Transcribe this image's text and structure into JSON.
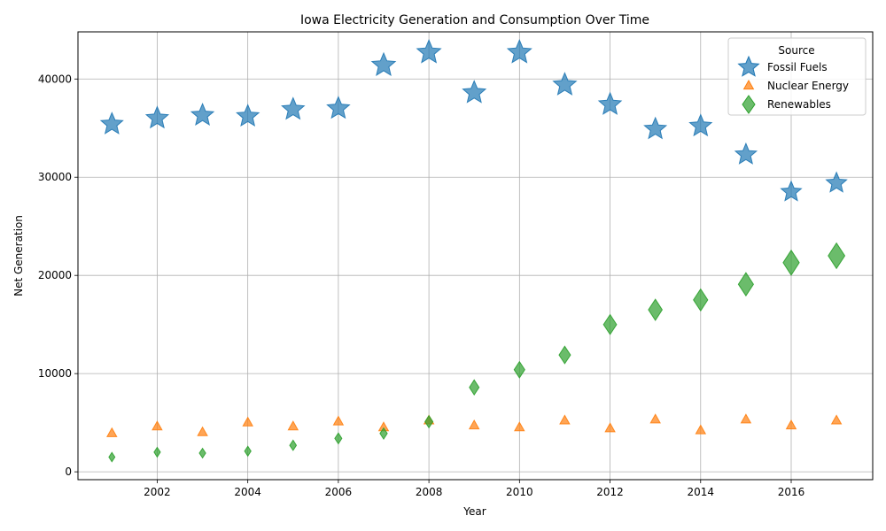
{
  "chart_data": {
    "type": "scatter",
    "title": "Iowa Electricity Generation and Consumption Over Time",
    "xlabel": "Year",
    "ylabel": "Net Generation",
    "xlim": [
      2000.25,
      2017.8
    ],
    "ylim": [
      -800,
      44800
    ],
    "xticks": [
      2002,
      2004,
      2006,
      2008,
      2010,
      2012,
      2014,
      2016
    ],
    "yticks": [
      0,
      10000,
      20000,
      30000,
      40000
    ],
    "grid": true,
    "legend": {
      "title": "Source",
      "placement": "top-right"
    },
    "series": [
      {
        "name": "Fossil Fuels",
        "marker": "star",
        "color": "#1f77b4",
        "x": [
          2001,
          2002,
          2003,
          2004,
          2005,
          2006,
          2007,
          2008,
          2009,
          2010,
          2011,
          2012,
          2013,
          2014,
          2015,
          2016,
          2017
        ],
        "values": [
          35400,
          36000,
          36300,
          36200,
          36900,
          37000,
          41400,
          42700,
          38600,
          42700,
          39400,
          37400,
          34900,
          35200,
          32300,
          28500,
          29400
        ]
      },
      {
        "name": "Nuclear Energy",
        "marker": "triangle",
        "color": "#ff7f0e",
        "x": [
          2001,
          2002,
          2003,
          2004,
          2005,
          2006,
          2007,
          2008,
          2009,
          2010,
          2011,
          2012,
          2013,
          2014,
          2015,
          2016,
          2017
        ],
        "values": [
          3900,
          4600,
          4000,
          5000,
          4600,
          5100,
          4500,
          5200,
          4700,
          4500,
          5200,
          4400,
          5300,
          4200,
          5300,
          4700,
          5200
        ]
      },
      {
        "name": "Renewables",
        "marker": "diamond",
        "color": "#2ca02c",
        "x": [
          2001,
          2002,
          2003,
          2004,
          2005,
          2006,
          2007,
          2008,
          2009,
          2010,
          2011,
          2012,
          2013,
          2014,
          2015,
          2016,
          2017
        ],
        "values": [
          1500,
          2000,
          1900,
          2100,
          2700,
          3400,
          3900,
          5100,
          8600,
          10400,
          11900,
          15000,
          16500,
          17500,
          19100,
          21300,
          22000
        ]
      }
    ]
  }
}
